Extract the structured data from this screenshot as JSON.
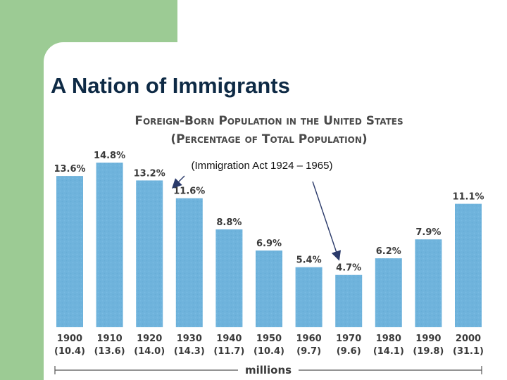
{
  "slide": {
    "title": "A Nation of Immigrants"
  },
  "colors": {
    "accent_green": "#9ccb94",
    "bar_fill": "#6fb3dc",
    "title_navy": "#0e2a45"
  },
  "chart_data": {
    "type": "bar",
    "title": "Foreign-Born Population in the United States",
    "subtitle": "(Percentage of Total Population)",
    "categories": [
      "1900",
      "1910",
      "1920",
      "1930",
      "1940",
      "1950",
      "1960",
      "1970",
      "1980",
      "1990",
      "2000"
    ],
    "values": [
      13.6,
      14.8,
      13.2,
      11.6,
      8.8,
      6.9,
      5.4,
      4.7,
      6.2,
      7.9,
      11.1
    ],
    "value_labels": [
      "13.6%",
      "14.8%",
      "13.2%",
      "11.6%",
      "8.8%",
      "6.9%",
      "5.4%",
      "4.7%",
      "6.2%",
      "7.9%",
      "11.1%"
    ],
    "population_millions": [
      "(10.4)",
      "(13.6)",
      "(14.0)",
      "(14.3)",
      "(11.7)",
      "(10.4)",
      "(9.7)",
      "(9.6)",
      "(14.1)",
      "(19.8)",
      "(31.1)"
    ],
    "xlabel": "millions",
    "ylabel": "",
    "ylim": [
      0,
      16
    ],
    "grid": false,
    "annotation": {
      "text": "(Immigration Act 1924 – 1965)",
      "arrow_targets": [
        "1920",
        "1970"
      ]
    }
  }
}
